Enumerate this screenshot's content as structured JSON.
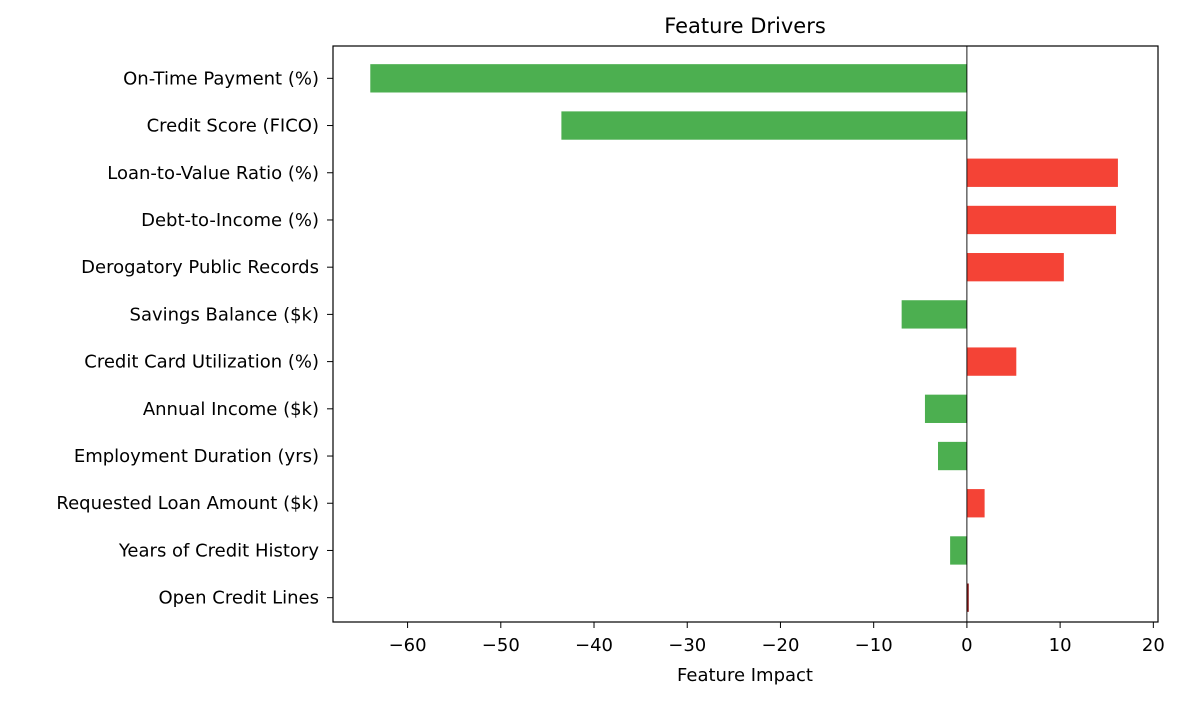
{
  "chart_data": {
    "type": "bar",
    "orientation": "horizontal",
    "title": "Feature Drivers",
    "xlabel": "Feature Impact",
    "ylabel": "",
    "xlim": [
      -68,
      20.5
    ],
    "xticks": [
      -60,
      -50,
      -40,
      -30,
      -20,
      -10,
      0,
      10,
      20
    ],
    "xtick_labels": [
      "−60",
      "−50",
      "−40",
      "−30",
      "−20",
      "−10",
      "0",
      "10",
      "20"
    ],
    "categories": [
      "On-Time Payment (%)",
      "Credit Score (FICO)",
      "Loan-to-Value Ratio (%)",
      "Debt-to-Income (%)",
      "Derogatory Public Records",
      "Savings Balance ($k)",
      "Credit Card Utilization (%)",
      "Annual Income ($k)",
      "Employment Duration (yrs)",
      "Requested Loan Amount ($k)",
      "Years of Credit History",
      "Open Credit Lines"
    ],
    "values": [
      -64.0,
      -43.5,
      16.2,
      16.0,
      10.4,
      -7.0,
      5.3,
      -4.5,
      -3.1,
      1.9,
      -1.8,
      0.2
    ],
    "colors": {
      "negative": "#4caf50",
      "positive": "#f44336",
      "small": "#8b1a1a",
      "zero_line": "#000000"
    },
    "grid": false,
    "legend": "none"
  }
}
